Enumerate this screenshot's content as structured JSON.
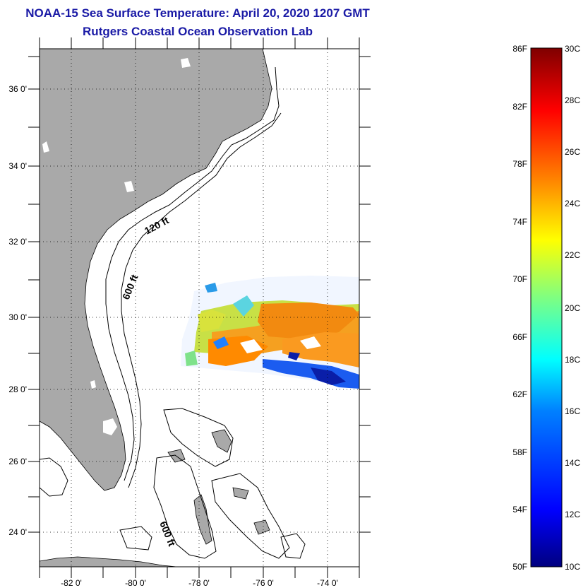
{
  "title": {
    "line1": "NOAA-15 Sea Surface Temperature:  April 20, 2020 1207 GMT",
    "line2": "Rutgers Coastal Ocean Observation Lab"
  },
  "map": {
    "lon_labels": [
      "-82 0'",
      "-80 0'",
      "-78 0'",
      "-76 0'",
      "-74 0'"
    ],
    "lat_labels": [
      "36 0'",
      "34 0'",
      "32 0'",
      "30 0'",
      "28 0'",
      "26 0'",
      "24 0'"
    ],
    "lon_range": [
      -83,
      -73
    ],
    "lat_range": [
      23,
      37.1
    ],
    "contour_labels": [
      "120 ft",
      "600 ft",
      "600 ft"
    ],
    "land_color": "#a9a9a9",
    "grid": "dotted"
  },
  "colorbar": {
    "fahrenheit_labels": [
      "86F",
      "82F",
      "78F",
      "74F",
      "70F",
      "66F",
      "62F",
      "58F",
      "54F",
      "50F"
    ],
    "celsius_labels": [
      "30C",
      "28C",
      "26C",
      "24C",
      "22C",
      "20C",
      "18C",
      "16C",
      "14C",
      "12C",
      "10C"
    ],
    "colors": [
      "#00007f",
      "#0000ff",
      "#0080ff",
      "#00ffff",
      "#80ff80",
      "#ffff00",
      "#ff8000",
      "#ff0000",
      "#7f0000"
    ]
  }
}
